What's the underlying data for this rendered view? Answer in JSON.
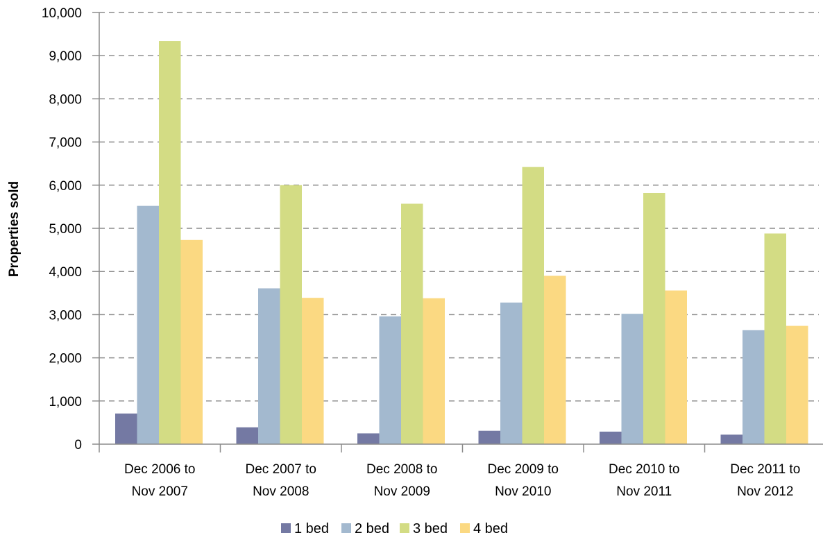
{
  "chart_data": {
    "type": "bar",
    "title": "",
    "xlabel": "",
    "ylabel": "Properties sold",
    "ylim": [
      0,
      10000
    ],
    "yticks": [
      0,
      1000,
      2000,
      3000,
      4000,
      5000,
      6000,
      7000,
      8000,
      9000,
      10000
    ],
    "ytick_labels": [
      "0",
      "1,000",
      "2,000",
      "3,000",
      "4,000",
      "5,000",
      "6,000",
      "7,000",
      "8,000",
      "9,000",
      "10,000"
    ],
    "grid": true,
    "grid_style": "dashed",
    "legend_position": "bottom",
    "categories": [
      [
        "Dec 2006 to",
        "Nov 2007"
      ],
      [
        "Dec 2007 to",
        "Nov 2008"
      ],
      [
        "Dec 2008 to",
        "Nov 2009"
      ],
      [
        "Dec 2009 to",
        "Nov 2010"
      ],
      [
        "Dec 2010 to",
        "Nov 2011"
      ],
      [
        "Dec 2011 to",
        "Nov 2012"
      ]
    ],
    "series": [
      {
        "name": "1 bed",
        "color": "#7479a3",
        "values": [
          710,
          390,
          250,
          310,
          290,
          220
        ]
      },
      {
        "name": "2 bed",
        "color": "#a3b9cf",
        "values": [
          5520,
          3610,
          2960,
          3280,
          3020,
          2640
        ]
      },
      {
        "name": "3 bed",
        "color": "#d3dc84",
        "values": [
          9340,
          6000,
          5570,
          6420,
          5820,
          4880
        ]
      },
      {
        "name": "4 bed",
        "color": "#fbd982",
        "values": [
          4730,
          3390,
          3380,
          3900,
          3560,
          2740
        ]
      }
    ]
  }
}
